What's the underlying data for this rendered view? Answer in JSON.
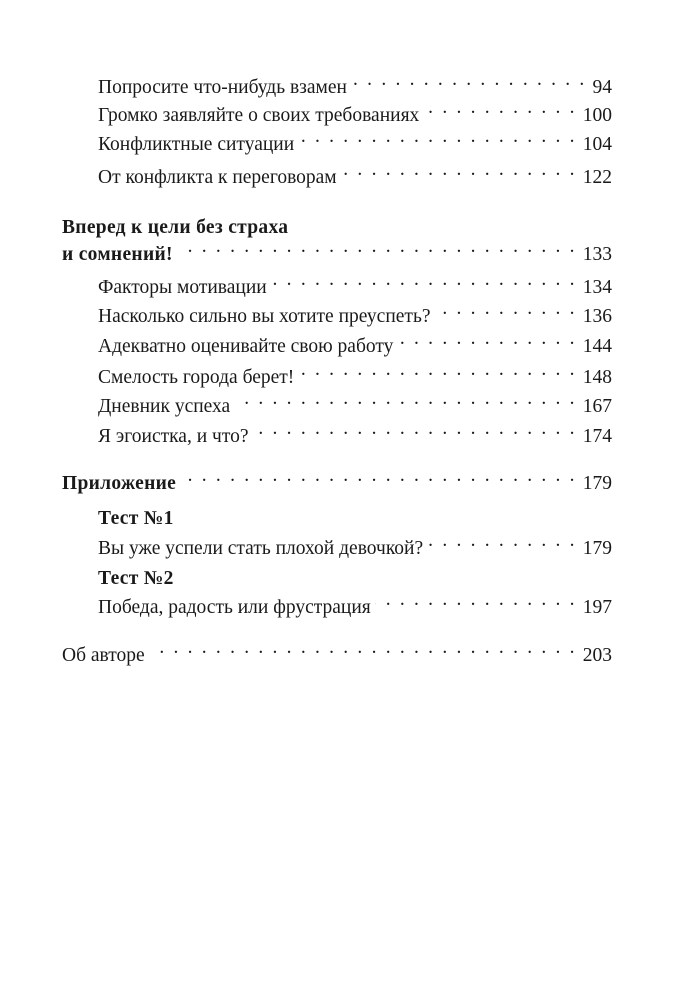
{
  "toc": [
    {
      "title": "Попросите что-нибудь взамен",
      "page": "94",
      "level": "sub"
    },
    {
      "title": "Громко заявляйте о своих требованиях",
      "page": "100",
      "level": "sub"
    },
    {
      "title": "Конфликтные ситуации",
      "page": "104",
      "level": "sub"
    },
    {
      "title": "От конфликта к переговорам",
      "page": "122",
      "level": "sub"
    },
    {
      "title": "Вперед к цели без страха",
      "page": "",
      "level": "chapter-line1"
    },
    {
      "title": "и сомнений!",
      "page": "133",
      "level": "chapter"
    },
    {
      "title": "Факторы мотивации",
      "page": "134",
      "level": "sub"
    },
    {
      "title": "Насколько сильно вы хотите преуспеть?",
      "page": "136",
      "level": "sub"
    },
    {
      "title": "Адекватно оценивайте свою работу",
      "page": "144",
      "level": "sub"
    },
    {
      "title": "Смелость города берет!",
      "page": "148",
      "level": "sub"
    },
    {
      "title": "Дневник успеха",
      "page": "167",
      "level": "sub"
    },
    {
      "title": "Я эгоистка, и что?",
      "page": "174",
      "level": "sub"
    },
    {
      "title": "Приложение",
      "page": "179",
      "level": "chapter"
    },
    {
      "title": "Тест №1",
      "page": "",
      "level": "subheading"
    },
    {
      "title": "Вы уже успели стать плохой девочкой?",
      "page": "179",
      "level": "sub"
    },
    {
      "title": "Тест №2",
      "page": "",
      "level": "subheading"
    },
    {
      "title": "Победа, радость или фрустрация",
      "page": "197",
      "level": "sub"
    },
    {
      "title": "Об авторе",
      "page": "203",
      "level": "top"
    }
  ]
}
